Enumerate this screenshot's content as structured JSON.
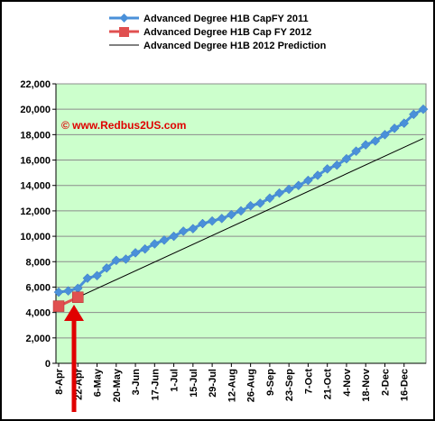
{
  "chart_data": {
    "type": "line",
    "title": "",
    "xlabel": "",
    "ylabel": "",
    "ylim": [
      0,
      22000
    ],
    "yticks": [
      0,
      2000,
      4000,
      6000,
      8000,
      10000,
      12000,
      14000,
      16000,
      18000,
      20000,
      22000
    ],
    "ytick_labels": [
      "0",
      "2,000",
      "4,000",
      "6,000",
      "8,000",
      "10,000",
      "12,000",
      "14,000",
      "16,000",
      "18,000",
      "20,000",
      "22,000"
    ],
    "categories": [
      "8-Apr",
      "22-Apr",
      "6-May",
      "20-May",
      "3-Jun",
      "17-Jun",
      "1-Jul",
      "15-Jul",
      "29-Jul",
      "12-Aug",
      "26-Aug",
      "9-Sep",
      "23-Sep",
      "7-Oct",
      "21-Oct",
      "4-Nov",
      "18-Nov",
      "2-Dec",
      "16-Dec"
    ],
    "grid": true,
    "legend_position": "top",
    "plot_background": "#ccffcc",
    "series": [
      {
        "name": "Advanced Degree H1B CapFY  2011",
        "color": "#4a90d9",
        "marker": "diamond",
        "x": [
          "8-Apr",
          "15-Apr",
          "22-Apr",
          "29-Apr",
          "6-May",
          "13-May",
          "20-May",
          "27-May",
          "3-Jun",
          "10-Jun",
          "17-Jun",
          "24-Jun",
          "1-Jul",
          "8-Jul",
          "15-Jul",
          "22-Jul",
          "29-Jul",
          "5-Aug",
          "12-Aug",
          "19-Aug",
          "26-Aug",
          "2-Sep",
          "9-Sep",
          "16-Sep",
          "23-Sep",
          "30-Sep",
          "7-Oct",
          "14-Oct",
          "21-Oct",
          "28-Oct",
          "4-Nov",
          "11-Nov",
          "18-Nov",
          "25-Nov",
          "2-Dec",
          "9-Dec",
          "16-Dec",
          "23-Dec",
          "30-Dec"
        ],
        "values": [
          5600,
          5700,
          5900,
          6700,
          6900,
          7500,
          8100,
          8200,
          8700,
          9000,
          9400,
          9700,
          10000,
          10400,
          10600,
          11000,
          11200,
          11400,
          11700,
          12000,
          12400,
          12600,
          13000,
          13400,
          13700,
          14000,
          14400,
          14800,
          15300,
          15600,
          16100,
          16700,
          17200,
          17500,
          18000,
          18500,
          18900,
          19600,
          20000
        ]
      },
      {
        "name": "Advanced Degree H1B Cap FY 2012",
        "color": "#e05050",
        "marker": "square",
        "x": [
          "8-Apr",
          "22-Apr"
        ],
        "values": [
          4500,
          5200
        ]
      },
      {
        "name": "Advanced Degree H1B 2012 Prediction",
        "color": "#000000",
        "marker": "none",
        "x": [
          "8-Apr",
          "30-Dec"
        ],
        "values": [
          4500,
          17700
        ]
      }
    ],
    "annotations": [
      {
        "text": "© www.Redbus2US.com",
        "color": "#e00000"
      }
    ]
  }
}
